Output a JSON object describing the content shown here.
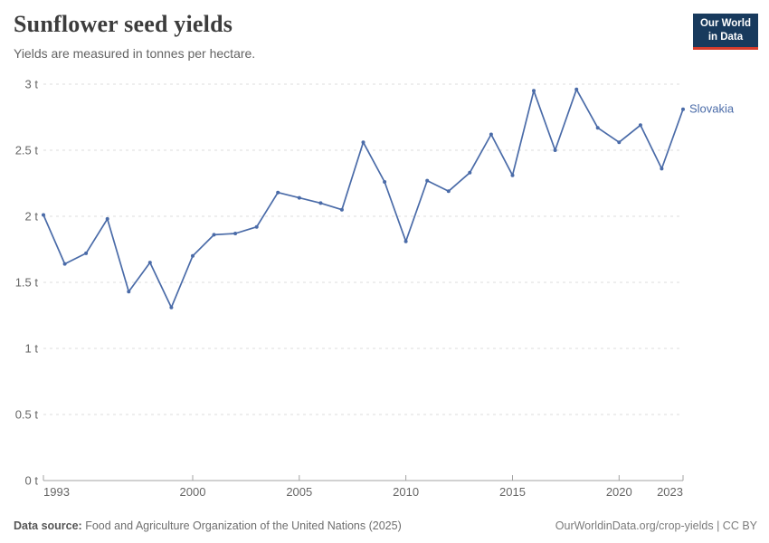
{
  "header": {
    "title": "Sunflower seed yields",
    "subtitle": "Yields are measured in tonnes per hectare.",
    "logo": {
      "line1": "Our World",
      "line2": "in Data"
    }
  },
  "chart_data": {
    "type": "line",
    "title": "Sunflower seed yields",
    "subtitle": "Yields are measured in tonnes per hectare.",
    "xlabel": "",
    "ylabel": "tonnes per hectare",
    "xlim": [
      1993,
      2023
    ],
    "ylim": [
      0,
      3
    ],
    "x_ticks": [
      1993,
      2000,
      2005,
      2010,
      2015,
      2020,
      2023
    ],
    "y_ticks": [
      0,
      0.5,
      1,
      1.5,
      2,
      2.5,
      3
    ],
    "y_tick_suffix": " t",
    "grid": "dashed-horizontal",
    "legend": "end-of-line-label",
    "series": [
      {
        "name": "Slovakia",
        "color": "#4a6ba8",
        "x": [
          1993,
          1994,
          1995,
          1996,
          1997,
          1998,
          1999,
          2000,
          2001,
          2002,
          2003,
          2004,
          2005,
          2006,
          2007,
          2008,
          2009,
          2010,
          2011,
          2012,
          2013,
          2014,
          2015,
          2016,
          2017,
          2018,
          2019,
          2020,
          2021,
          2022,
          2023
        ],
        "values": [
          2.01,
          1.64,
          1.72,
          1.98,
          1.43,
          1.65,
          1.31,
          1.7,
          1.86,
          1.87,
          1.92,
          2.18,
          2.14,
          2.1,
          2.05,
          2.56,
          2.26,
          1.81,
          2.27,
          2.19,
          2.33,
          2.62,
          2.31,
          2.95,
          2.5,
          2.96,
          2.67,
          2.56,
          2.69,
          2.36,
          2.81
        ]
      }
    ]
  },
  "footer": {
    "source_label": "Data source:",
    "source_text": "Food and Agriculture Organization of the United Nations (2025)",
    "credit": "OurWorldinData.org/crop-yields | CC BY"
  },
  "colors": {
    "line": "#4a6ba8",
    "grid": "#dcdcdc",
    "axis": "#a3a3a3",
    "tick_text": "#666666",
    "logo_navy": "#183a5d",
    "logo_red": "#d73c2c"
  }
}
